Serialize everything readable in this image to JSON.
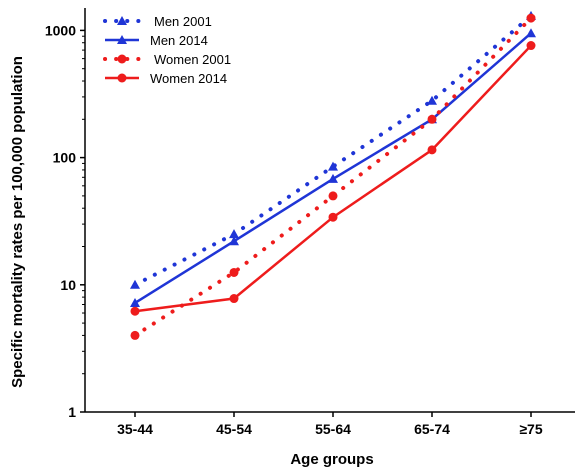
{
  "chart_data": {
    "type": "line",
    "xlabel": "Age groups",
    "ylabel": "Specific mortality rates per 100,000 population",
    "y_scale": "log",
    "ylim": [
      1,
      1500
    ],
    "yticks": [
      "1",
      "10",
      "100",
      "1000"
    ],
    "categories": [
      "35-44",
      "45-54",
      "55-64",
      "65-74",
      "≥75"
    ],
    "legend_position": "top-left",
    "grid": false,
    "series": [
      {
        "name": "Men 2001",
        "values": [
          10,
          25,
          85,
          280,
          1300
        ],
        "color": "#1f35d6",
        "dash": "dotted",
        "marker": "triangle"
      },
      {
        "name": "Men 2014",
        "values": [
          7.2,
          22,
          68,
          200,
          950
        ],
        "color": "#1f35d6",
        "dash": "solid",
        "marker": "triangle"
      },
      {
        "name": "Women 2001",
        "values": [
          4,
          12.5,
          50,
          200,
          1250
        ],
        "color": "#ee1c1c",
        "dash": "dotted",
        "marker": "circle"
      },
      {
        "name": "Women 2014",
        "values": [
          6.2,
          7.8,
          34,
          115,
          760
        ],
        "color": "#ee1c1c",
        "dash": "solid",
        "marker": "circle"
      }
    ]
  }
}
